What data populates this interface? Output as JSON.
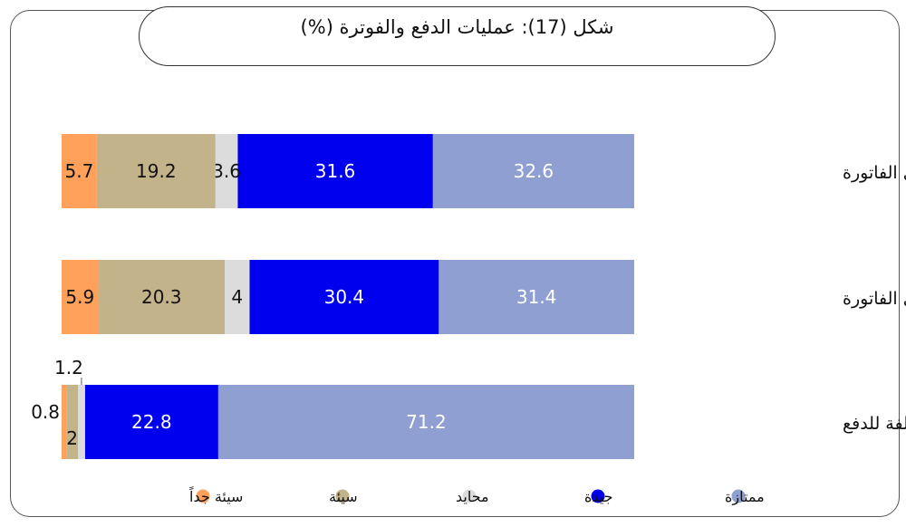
{
  "chart_data": {
    "type": "bar",
    "orientation": "horizontal",
    "stacked": true,
    "title": "شكل (17): عمليات الدفع والفوترة (%)",
    "categories": [
      "كفاية المعلومات الواردة في الفاتورة",
      "دقة البيانات الواردة في الفاتورة",
      "تسهيلات مختلفة للدفع"
    ],
    "series": [
      {
        "name": "ممتازة",
        "color": "#8f9fd1",
        "label_color": "#ffffff",
        "values": [
          32.6,
          31.4,
          71.2
        ]
      },
      {
        "name": "جيدة",
        "color": "#0000ee",
        "label_color": "#ffffff",
        "values": [
          31.6,
          30.4,
          22.8
        ]
      },
      {
        "name": "محايد",
        "color": "#dcdcdc",
        "label_color": "#111111",
        "values": [
          3.6,
          4,
          1.2
        ]
      },
      {
        "name": "سيئة",
        "color": "#c2b38a",
        "label_color": "#111111",
        "values": [
          19.2,
          20.3,
          2
        ]
      },
      {
        "name": "سيئة جداً",
        "color": "#ffa15a",
        "label_color": "#111111",
        "values": [
          5.7,
          5.9,
          0.8
        ]
      }
    ],
    "xlim": [
      0,
      100
    ],
    "grid": false,
    "legend_position": "bottom"
  }
}
